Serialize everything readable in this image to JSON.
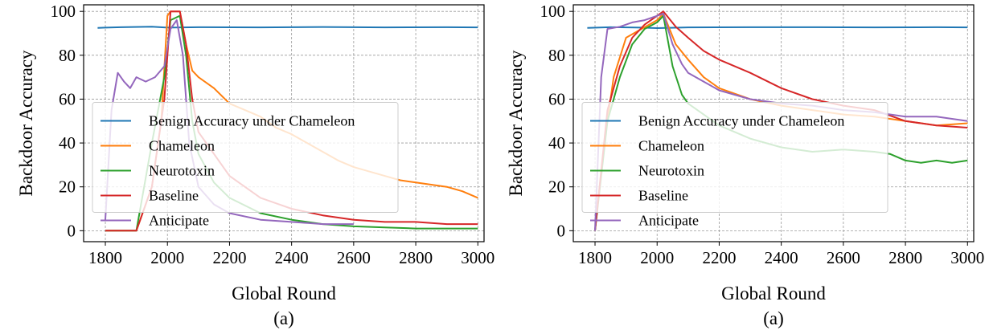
{
  "chart_data": [
    {
      "type": "line",
      "caption": "(a)",
      "xlabel": "Global Round",
      "ylabel": "Backdoor Accuracy",
      "xlim": [
        1730,
        3020
      ],
      "ylim": [
        -5,
        103
      ],
      "xticks": [
        1800,
        2000,
        2200,
        2400,
        2600,
        2800,
        3000
      ],
      "yticks": [
        0,
        20,
        40,
        60,
        80,
        100
      ],
      "grid": true,
      "legend_position": "center-left",
      "series": [
        {
          "name": "Benign Accuracy under Chameleon",
          "color": "#1f77b4",
          "x": [
            1775,
            1850,
            1950,
            2000,
            2100,
            2300,
            2500,
            2700,
            2900,
            3000
          ],
          "y": [
            92.5,
            92.8,
            93.0,
            92.6,
            92.8,
            92.7,
            92.9,
            92.7,
            92.8,
            92.7
          ]
        },
        {
          "name": "Chameleon",
          "color": "#ff7f0e",
          "x": [
            1800,
            1850,
            1900,
            1950,
            1980,
            2000,
            2010,
            2040,
            2060,
            2080,
            2100,
            2150,
            2200,
            2250,
            2300,
            2350,
            2400,
            2450,
            2500,
            2550,
            2600,
            2650,
            2700,
            2750,
            2800,
            2850,
            2900,
            2950,
            3000
          ],
          "y": [
            0,
            0,
            0,
            20,
            50,
            98,
            100,
            100,
            85,
            73,
            70,
            65,
            58,
            55,
            52,
            47,
            44,
            40,
            36,
            32,
            29,
            27,
            25,
            23,
            22,
            21,
            20,
            18,
            15
          ]
        },
        {
          "name": "Neurotoxin",
          "color": "#2ca02c",
          "x": [
            1800,
            1850,
            1900,
            1950,
            1990,
            2010,
            2040,
            2060,
            2080,
            2100,
            2150,
            2200,
            2300,
            2400,
            2500,
            2600,
            2700,
            2800,
            2900,
            3000
          ],
          "y": [
            0,
            0,
            0,
            40,
            70,
            96,
            98,
            80,
            50,
            35,
            22,
            15,
            8,
            5,
            3,
            2,
            1.5,
            1,
            1,
            1
          ]
        },
        {
          "name": "Baseline",
          "color": "#d62728",
          "x": [
            1800,
            1850,
            1900,
            1950,
            1990,
            2010,
            2040,
            2060,
            2080,
            2100,
            2150,
            2200,
            2300,
            2400,
            2500,
            2600,
            2700,
            2800,
            2900,
            3000
          ],
          "y": [
            0,
            0,
            0,
            20,
            60,
            100,
            100,
            85,
            60,
            45,
            35,
            25,
            15,
            10,
            7,
            5,
            4,
            4,
            3,
            3
          ]
        },
        {
          "name": "Anticipate",
          "color": "#9467bd",
          "x": [
            1800,
            1820,
            1840,
            1860,
            1880,
            1900,
            1930,
            1960,
            1990,
            2010,
            2030,
            2050,
            2070,
            2100,
            2150,
            2200,
            2300,
            2400,
            2500,
            2600
          ],
          "y": [
            5,
            55,
            72,
            68,
            65,
            70,
            68,
            70,
            75,
            92,
            96,
            80,
            40,
            20,
            12,
            8,
            5,
            4,
            3,
            3
          ]
        }
      ]
    },
    {
      "type": "line",
      "caption": "(a)",
      "xlabel": "Global Round",
      "ylabel": "Backdoor Accuracy",
      "xlim": [
        1730,
        3020
      ],
      "ylim": [
        -5,
        103
      ],
      "xticks": [
        1800,
        2000,
        2200,
        2400,
        2600,
        2800,
        3000
      ],
      "yticks": [
        0,
        20,
        40,
        60,
        80,
        100
      ],
      "grid": true,
      "legend_position": "center-left",
      "series": [
        {
          "name": "Benign Accuracy under Chameleon",
          "color": "#1f77b4",
          "x": [
            1775,
            1850,
            1950,
            2000,
            2100,
            2300,
            2500,
            2700,
            2900,
            3000
          ],
          "y": [
            92.5,
            92.8,
            92.6,
            92.4,
            92.7,
            92.8,
            92.8,
            92.7,
            92.8,
            92.7
          ]
        },
        {
          "name": "Chameleon",
          "color": "#ff7f0e",
          "x": [
            1800,
            1830,
            1860,
            1900,
            1950,
            2000,
            2020,
            2060,
            2100,
            2150,
            2200,
            2300,
            2400,
            2500,
            2600,
            2700,
            2800,
            2900,
            3000
          ],
          "y": [
            0,
            40,
            70,
            88,
            92,
            96,
            99,
            85,
            78,
            70,
            65,
            60,
            57,
            55,
            53,
            52,
            50,
            48,
            49
          ]
        },
        {
          "name": "Neurotoxin",
          "color": "#2ca02c",
          "x": [
            1800,
            1840,
            1880,
            1920,
            1960,
            2000,
            2020,
            2050,
            2080,
            2100,
            2150,
            2200,
            2300,
            2400,
            2500,
            2600,
            2700,
            2750,
            2800,
            2850,
            2900,
            2950,
            3000
          ],
          "y": [
            0,
            50,
            70,
            85,
            92,
            95,
            98,
            75,
            62,
            58,
            53,
            48,
            42,
            38,
            36,
            37,
            36,
            35,
            32,
            31,
            32,
            31,
            32
          ]
        },
        {
          "name": "Baseline",
          "color": "#d62728",
          "x": [
            1800,
            1840,
            1880,
            1920,
            1960,
            2000,
            2020,
            2060,
            2100,
            2150,
            2200,
            2300,
            2400,
            2500,
            2600,
            2700,
            2800,
            2900,
            3000
          ],
          "y": [
            0,
            55,
            75,
            88,
            94,
            98,
            100,
            93,
            88,
            82,
            78,
            72,
            65,
            60,
            57,
            55,
            50,
            48,
            47
          ]
        },
        {
          "name": "Anticipate",
          "color": "#9467bd",
          "x": [
            1800,
            1820,
            1840,
            1880,
            1920,
            1960,
            2000,
            2020,
            2050,
            2080,
            2100,
            2150,
            2200,
            2300,
            2400,
            2500,
            2600,
            2700,
            2800,
            2900,
            3000
          ],
          "y": [
            0,
            70,
            92,
            93,
            95,
            96,
            98,
            99,
            85,
            76,
            72,
            68,
            64,
            60,
            58,
            57,
            55,
            54,
            52,
            52,
            50
          ]
        }
      ]
    }
  ]
}
